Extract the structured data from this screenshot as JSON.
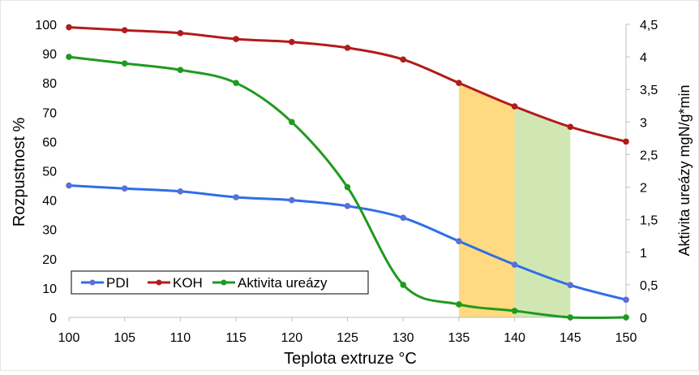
{
  "chart_data": {
    "type": "line",
    "x": [
      100,
      105,
      110,
      115,
      120,
      125,
      130,
      135,
      140,
      145,
      150
    ],
    "xlabel": "Teplota extruze °C",
    "ylabel": "Rozpustnost %",
    "y2label": "Aktivita ureázy  mgN/g*min",
    "xlim": [
      100,
      150
    ],
    "ylim": [
      0,
      100
    ],
    "y2lim": [
      0,
      4.5
    ],
    "x_ticks": [
      "100",
      "105",
      "110",
      "115",
      "120",
      "125",
      "130",
      "135",
      "140",
      "145",
      "150"
    ],
    "y_ticks": [
      "0",
      "10",
      "20",
      "30",
      "40",
      "50",
      "60",
      "70",
      "80",
      "90",
      "100"
    ],
    "y2_ticks": [
      "0",
      "0,5",
      "1",
      "1,5",
      "2",
      "2,5",
      "3",
      "3,5",
      "4",
      "4,5"
    ],
    "grid": "off",
    "legend_position": "bottom-left",
    "series": [
      {
        "name": "PDI",
        "axis": "left",
        "color": "#2e6fe6",
        "marker_color": "#5c6fd6",
        "values": [
          45,
          44,
          43,
          41,
          40,
          38,
          34,
          26,
          18,
          11,
          6
        ]
      },
      {
        "name": "KOH",
        "axis": "left",
        "color": "#b31b1b",
        "marker_color": "#b31b1b",
        "values": [
          99,
          98,
          97,
          95,
          94,
          92,
          88,
          80,
          72,
          65,
          60
        ]
      },
      {
        "name": "Aktivita ureázy",
        "axis": "right",
        "color": "#1f9a1f",
        "marker_color": "#1f9a1f",
        "values": [
          4.0,
          3.9,
          3.8,
          3.6,
          3.0,
          2.0,
          0.5,
          0.2,
          0.1,
          0.0,
          0.0
        ]
      }
    ],
    "highlights": [
      {
        "x_from": 135,
        "x_to": 140,
        "color": "#ffd36b"
      },
      {
        "x_from": 140,
        "x_to": 145,
        "color": "#c9e3a6"
      }
    ]
  }
}
